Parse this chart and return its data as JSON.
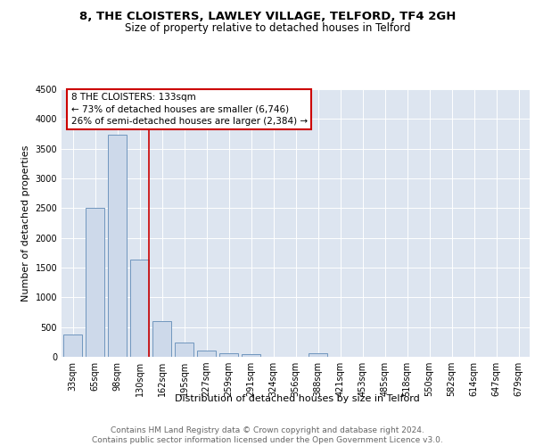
{
  "title1": "8, THE CLOISTERS, LAWLEY VILLAGE, TELFORD, TF4 2GH",
  "title2": "Size of property relative to detached houses in Telford",
  "xlabel": "Distribution of detached houses by size in Telford",
  "ylabel": "Number of detached properties",
  "categories": [
    "33sqm",
    "65sqm",
    "98sqm",
    "130sqm",
    "162sqm",
    "195sqm",
    "227sqm",
    "259sqm",
    "291sqm",
    "324sqm",
    "356sqm",
    "388sqm",
    "421sqm",
    "453sqm",
    "485sqm",
    "518sqm",
    "550sqm",
    "582sqm",
    "614sqm",
    "647sqm",
    "679sqm"
  ],
  "values": [
    380,
    2510,
    3730,
    1640,
    600,
    240,
    110,
    60,
    50,
    0,
    0,
    60,
    0,
    0,
    0,
    0,
    0,
    0,
    0,
    0,
    0
  ],
  "bar_color": "#cdd9ea",
  "bar_edge_color": "#7096be",
  "vline_color": "#cc0000",
  "vline_x": 3.42,
  "annotation_text": "8 THE CLOISTERS: 133sqm\n← 73% of detached houses are smaller (6,746)\n26% of semi-detached houses are larger (2,384) →",
  "annotation_box_color": "#cc0000",
  "ylim": [
    0,
    4500
  ],
  "yticks": [
    0,
    500,
    1000,
    1500,
    2000,
    2500,
    3000,
    3500,
    4000,
    4500
  ],
  "plot_bg_color": "#dde5f0",
  "footer_text": "Contains HM Land Registry data © Crown copyright and database right 2024.\nContains public sector information licensed under the Open Government Licence v3.0.",
  "title1_fontsize": 9.5,
  "title2_fontsize": 8.5,
  "xlabel_fontsize": 8,
  "ylabel_fontsize": 8,
  "tick_fontsize": 7,
  "footer_fontsize": 6.5,
  "ann_fontsize": 7.5
}
